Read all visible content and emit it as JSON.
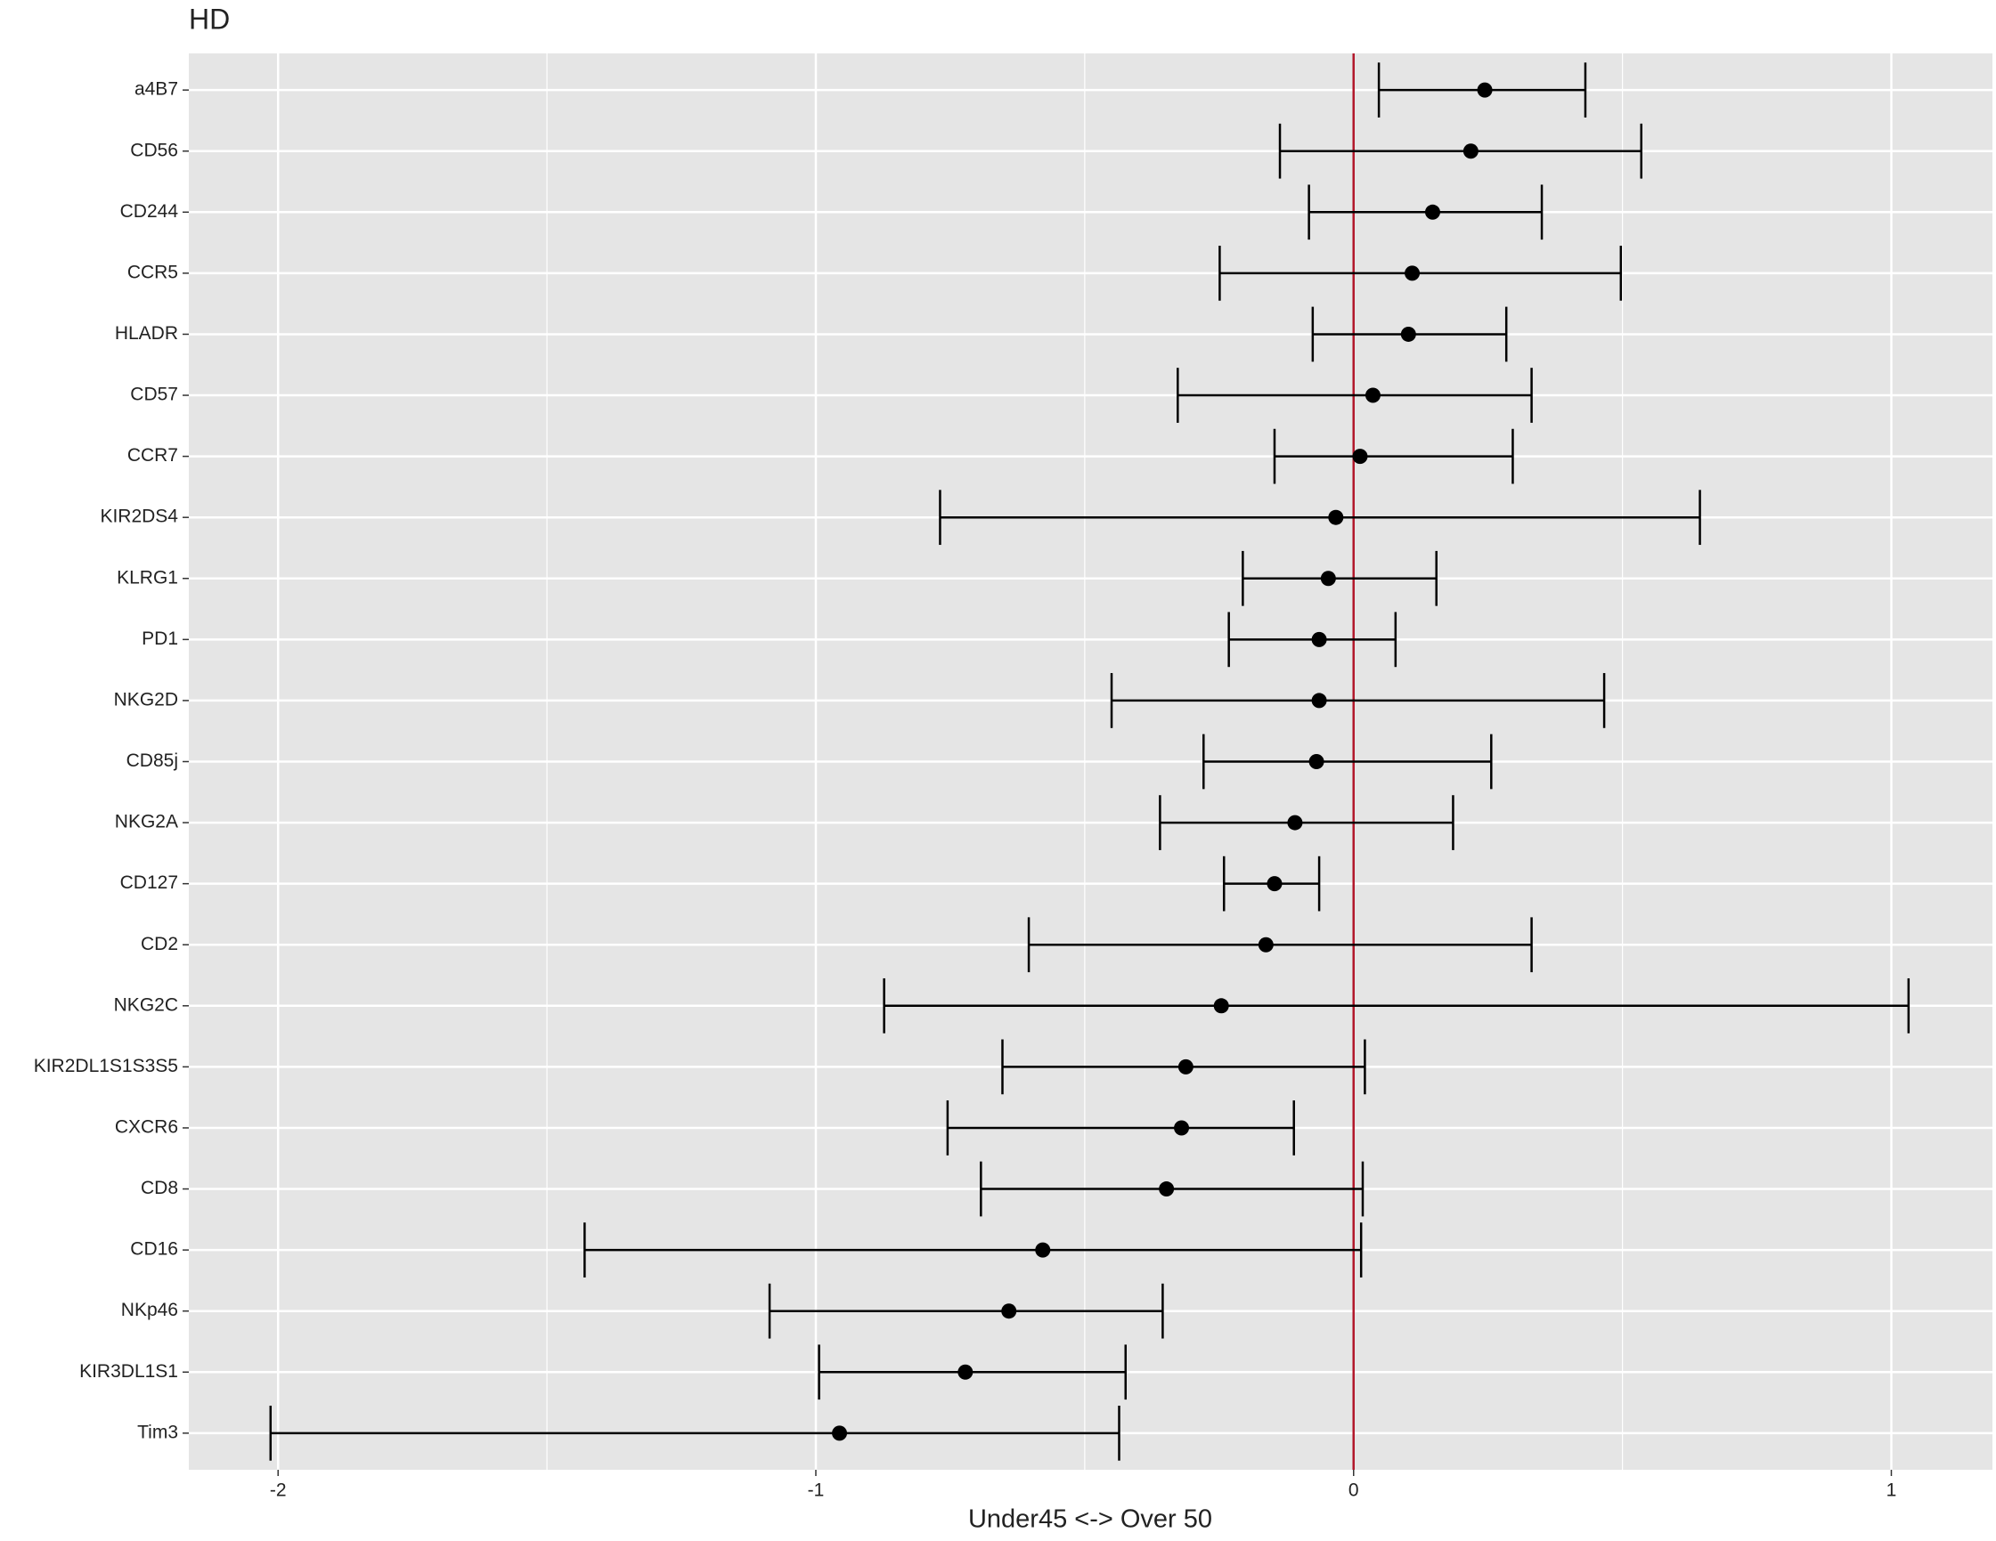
{
  "chart_data": {
    "type": "errorbar",
    "title": "HD",
    "xlabel": "Under45 <-> Over 50",
    "categories": [
      "a4B7",
      "CD56",
      "CD244",
      "CCR5",
      "HLADR",
      "CD57",
      "CCR7",
      "KIR2DS4",
      "KLRG1",
      "PD1",
      "NKG2D",
      "CD85j",
      "NKG2A",
      "CD127",
      "CD2",
      "NKG2C",
      "KIR2DL1S1S3S5",
      "CXCR6",
      "CD8",
      "CD16",
      "NKp46",
      "KIR3DL1S1",
      "Tim3"
    ],
    "values": [
      0.244,
      0.218,
      0.147,
      0.109,
      0.102,
      0.036,
      0.012,
      -0.033,
      -0.047,
      -0.064,
      -0.064,
      -0.069,
      -0.109,
      -0.147,
      -0.163,
      -0.246,
      -0.312,
      -0.32,
      -0.348,
      -0.578,
      -0.641,
      -0.722,
      -0.956
    ],
    "lower": [
      0.047,
      -0.137,
      -0.083,
      -0.249,
      -0.076,
      -0.327,
      -0.147,
      -0.769,
      -0.206,
      -0.232,
      -0.45,
      -0.279,
      -0.36,
      -0.241,
      -0.604,
      -0.873,
      -0.653,
      -0.755,
      -0.693,
      -1.43,
      -1.086,
      -0.994,
      -2.014
    ],
    "upper": [
      0.431,
      0.535,
      0.35,
      0.497,
      0.284,
      0.331,
      0.296,
      0.644,
      0.154,
      0.078,
      0.466,
      0.256,
      0.185,
      -0.064,
      0.331,
      1.032,
      0.021,
      -0.111,
      0.017,
      0.014,
      -0.355,
      -0.424,
      -0.436
    ],
    "color": "#000000",
    "xlim": [
      -2.166,
      1.188
    ],
    "xticks": [
      -2,
      -1,
      0,
      1
    ],
    "vline": 0,
    "vline_color": "#b2182b",
    "grid": true,
    "panel_color": "#e5e5e5"
  }
}
